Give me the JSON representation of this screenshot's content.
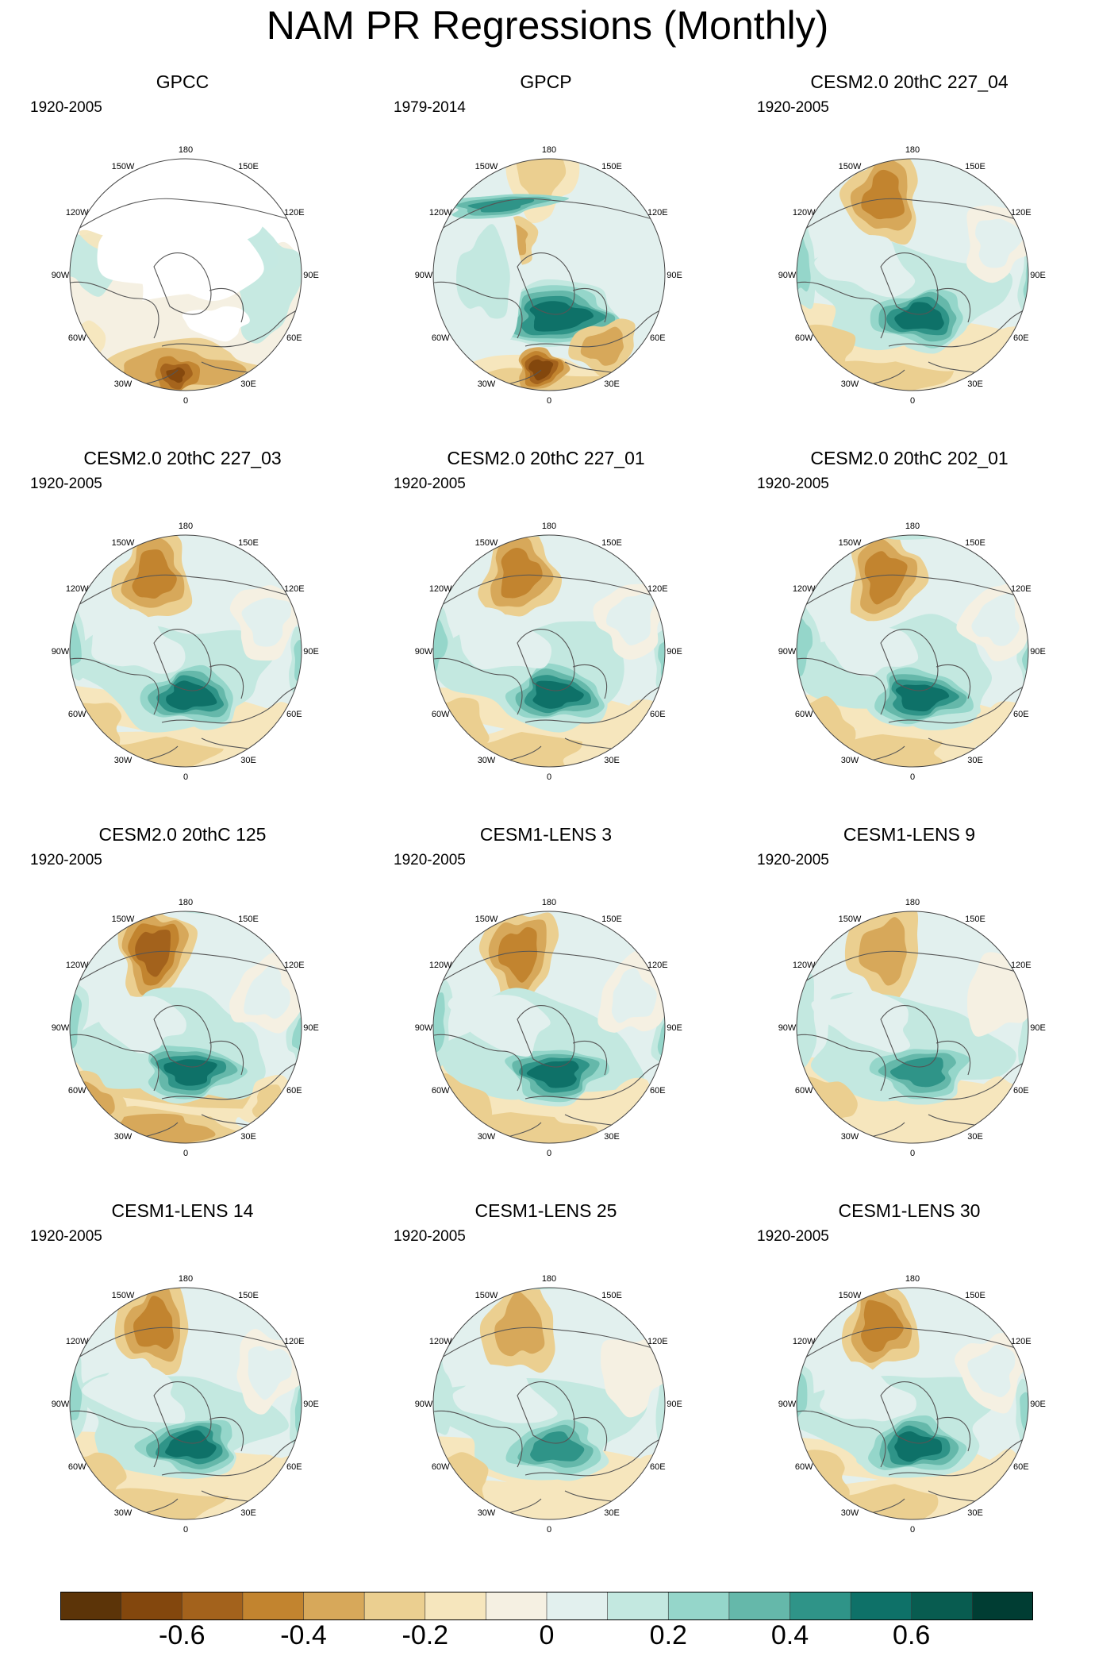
{
  "title": "NAM PR Regressions (Monthly)",
  "lon_labels": [
    "180",
    "150E",
    "120E",
    "90E",
    "60E",
    "30E",
    "0",
    "30W",
    "60W",
    "90W",
    "120W",
    "150W"
  ],
  "panels": [
    {
      "name": "GPCC",
      "years": "1920-2005",
      "land_only": true
    },
    {
      "name": "GPCP",
      "years": "1979-2014",
      "land_only": false
    },
    {
      "name": "CESM2.0 20thC 227_04",
      "years": "1920-2005",
      "land_only": false
    },
    {
      "name": "CESM2.0 20thC 227_03",
      "years": "1920-2005",
      "land_only": false
    },
    {
      "name": "CESM2.0 20thC 227_01",
      "years": "1920-2005",
      "land_only": false
    },
    {
      "name": "CESM2.0 20thC 202_01",
      "years": "1920-2005",
      "land_only": false
    },
    {
      "name": "CESM2.0 20thC 125",
      "years": "1920-2005",
      "land_only": false
    },
    {
      "name": "CESM1-LENS 3",
      "years": "1920-2005",
      "land_only": false
    },
    {
      "name": "CESM1-LENS 9",
      "years": "1920-2005",
      "land_only": false
    },
    {
      "name": "CESM1-LENS 14",
      "years": "1920-2005",
      "land_only": false
    },
    {
      "name": "CESM1-LENS 25",
      "years": "1920-2005",
      "land_only": false
    },
    {
      "name": "CESM1-LENS 30",
      "years": "1920-2005",
      "land_only": false
    }
  ],
  "colorbar": {
    "colors": [
      "#5c3408",
      "#83470d",
      "#a3621c",
      "#c2842f",
      "#d7a85a",
      "#ebcf90",
      "#f6e6bd",
      "#f5f0e2",
      "#e2f0ee",
      "#c3e8e0",
      "#95d6ca",
      "#65b8aa",
      "#2f9488",
      "#0e7168",
      "#085c50",
      "#003d33"
    ],
    "labels": [
      "-0.6",
      "-0.4",
      "-0.2",
      "0",
      "0.2",
      "0.4",
      "0.6"
    ],
    "label_values": [
      -0.6,
      -0.4,
      -0.2,
      0,
      0.2,
      0.4,
      0.6
    ],
    "min": -0.8,
    "max": 0.8
  }
}
